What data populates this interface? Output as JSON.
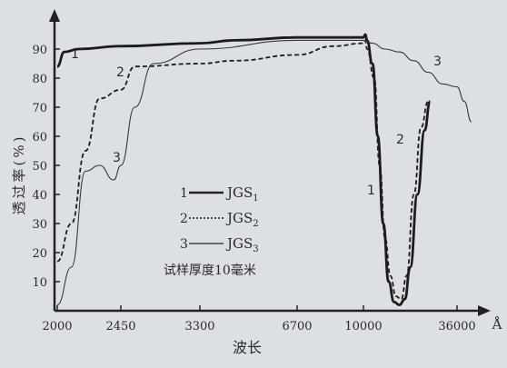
{
  "chart_data": {
    "type": "line",
    "title": "",
    "xlabel": "波长",
    "x_unit": "Å",
    "ylabel": "透过率(%)",
    "ylim": [
      0,
      100
    ],
    "yticks": [
      "10",
      "20",
      "30",
      "40",
      "50",
      "60",
      "70",
      "80",
      "90"
    ],
    "xticks": [
      "2000",
      "2450",
      "3300",
      "6700",
      "10000",
      "36000"
    ],
    "note": "试样厚度10毫米",
    "legend": [
      {
        "id": "1",
        "label": "JGS",
        "sub": "1",
        "style": "thick solid"
      },
      {
        "id": "2",
        "label": "JGS",
        "sub": "2",
        "style": "dashed"
      },
      {
        "id": "3",
        "label": "JGS",
        "sub": "3",
        "style": "thin solid"
      }
    ],
    "series": [
      {
        "name": "1",
        "style": "thick",
        "points": [
          [
            "2000",
            84
          ],
          [
            "2050",
            89
          ],
          [
            "2150",
            90
          ],
          [
            "2450",
            91
          ],
          [
            "3300",
            92
          ],
          [
            "4500",
            93
          ],
          [
            "6700",
            94
          ],
          [
            "8500",
            94
          ],
          [
            "9500",
            94
          ],
          [
            "10000",
            94
          ],
          [
            "10500",
            95
          ],
          [
            "11000",
            93
          ],
          [
            "12500",
            85
          ],
          [
            "14000",
            60
          ],
          [
            "15500",
            30
          ],
          [
            "17000",
            10
          ],
          [
            "18500",
            3
          ],
          [
            "20000",
            2
          ],
          [
            "21500",
            4
          ],
          [
            "23000",
            15
          ],
          [
            "25000",
            40
          ],
          [
            "27000",
            62
          ],
          [
            "28500",
            72
          ]
        ]
      },
      {
        "name": "2",
        "style": "dashed",
        "points": [
          [
            "2000",
            17
          ],
          [
            "2100",
            30
          ],
          [
            "2200",
            55
          ],
          [
            "2300",
            73
          ],
          [
            "2450",
            76
          ],
          [
            "2600",
            84
          ],
          [
            "3300",
            85
          ],
          [
            "4500",
            86
          ],
          [
            "6700",
            88
          ],
          [
            "8500",
            91
          ],
          [
            "10000",
            92
          ],
          [
            "10500",
            93
          ],
          [
            "11000",
            90
          ],
          [
            "13000",
            80
          ],
          [
            "14500",
            50
          ],
          [
            "16000",
            25
          ],
          [
            "17500",
            12
          ],
          [
            "19000",
            5
          ],
          [
            "20500",
            4
          ],
          [
            "22000",
            12
          ],
          [
            "24000",
            40
          ],
          [
            "26000",
            63
          ],
          [
            "28000",
            72
          ]
        ]
      },
      {
        "name": "3",
        "style": "thin",
        "points": [
          [
            "2000",
            2
          ],
          [
            "2100",
            15
          ],
          [
            "2200",
            48
          ],
          [
            "2300",
            50
          ],
          [
            "2400",
            45
          ],
          [
            "2450",
            50
          ],
          [
            "2600",
            70
          ],
          [
            "2800",
            85
          ],
          [
            "3300",
            90
          ],
          [
            "6700",
            93
          ],
          [
            "10000",
            93
          ],
          [
            "12500",
            92
          ],
          [
            "16000",
            90
          ],
          [
            "20000",
            89
          ],
          [
            "24000",
            86
          ],
          [
            "28000",
            82
          ],
          [
            "32000",
            78
          ],
          [
            "36000",
            77
          ],
          [
            "38000",
            72
          ],
          [
            "40000",
            65
          ]
        ]
      }
    ],
    "curve_labels": [
      "1",
      "2",
      "3"
    ]
  }
}
